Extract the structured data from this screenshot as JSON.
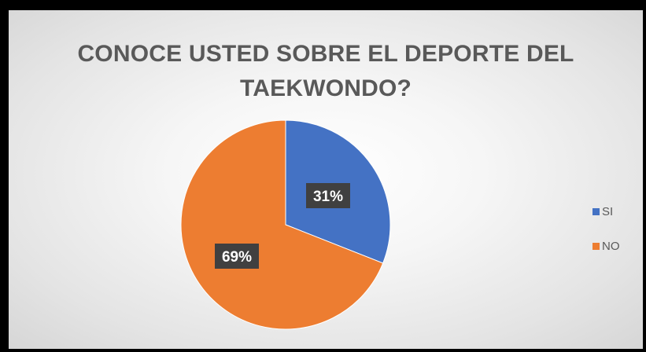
{
  "chart_data": {
    "type": "pie",
    "title": "CONOCE USTED SOBRE EL DEPORTE DEL TAEKWONDO?",
    "title_lines": [
      "CONOCE USTED SOBRE EL DEPORTE DEL",
      "TAEKWONDO?"
    ],
    "categories": [
      "SI",
      "NO"
    ],
    "values": [
      31,
      69
    ],
    "data_labels": [
      "31%",
      "69%"
    ],
    "colors": [
      "#4472C4",
      "#ED7D31"
    ],
    "legend_position": "right"
  }
}
